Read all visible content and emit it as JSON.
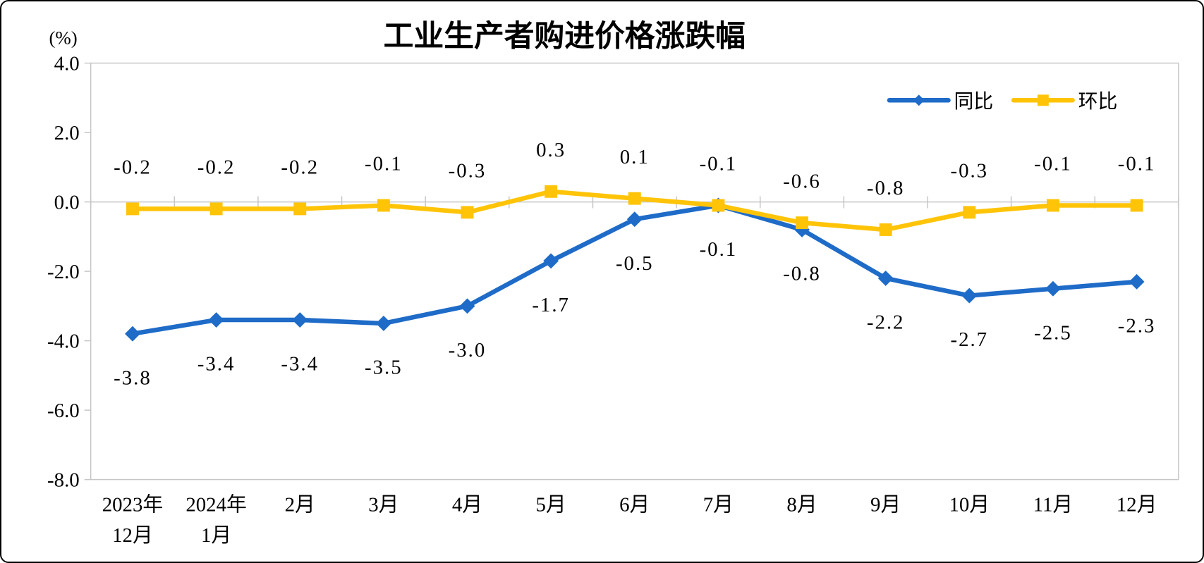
{
  "chart_data": {
    "type": "line",
    "title": "工业生产者购进价格涨跌幅",
    "unit_label": "(%)",
    "categories": [
      [
        "2023年",
        "12月"
      ],
      [
        "2024年",
        "1月"
      ],
      [
        "2月"
      ],
      [
        "3月"
      ],
      [
        "4月"
      ],
      [
        "5月"
      ],
      [
        "6月"
      ],
      [
        "7月"
      ],
      [
        "8月"
      ],
      [
        "9月"
      ],
      [
        "10月"
      ],
      [
        "11月"
      ],
      [
        "12月"
      ]
    ],
    "y_axis": {
      "min": -8.0,
      "max": 4.0,
      "step": 2.0,
      "tick_labels": [
        "4.0",
        "2.0",
        "0.0",
        "-2.0",
        "-4.0",
        "-6.0",
        "-8.0"
      ]
    },
    "grid": false,
    "legend_position": "top-right",
    "series": [
      {
        "id": "yoy",
        "name": "同比",
        "color": "#1E6BC8",
        "marker": "diamond",
        "label_position": "below",
        "values": [
          -3.8,
          -3.4,
          -3.4,
          -3.5,
          -3.0,
          -1.7,
          -0.5,
          -0.1,
          -0.8,
          -2.2,
          -2.7,
          -2.5,
          -2.3
        ],
        "labels": [
          "-3.8",
          "-3.4",
          "-3.4",
          "-3.5",
          "-3.0",
          "-1.7",
          "-0.5",
          "-0.1",
          "-0.8",
          "-2.2",
          "-2.7",
          "-2.5",
          "-2.3"
        ]
      },
      {
        "id": "mom",
        "name": "环比",
        "color": "#FFC408",
        "marker": "square",
        "label_position": "above",
        "values": [
          -0.2,
          -0.2,
          -0.2,
          -0.1,
          -0.3,
          0.3,
          0.1,
          -0.1,
          -0.6,
          -0.8,
          -0.3,
          -0.1,
          -0.1
        ],
        "labels": [
          "-0.2",
          "-0.2",
          "-0.2",
          "-0.1",
          "-0.3",
          "0.3",
          "0.1",
          "-0.1",
          "-0.6",
          "-0.8",
          "-0.3",
          "-0.1",
          "-0.1"
        ]
      }
    ]
  }
}
